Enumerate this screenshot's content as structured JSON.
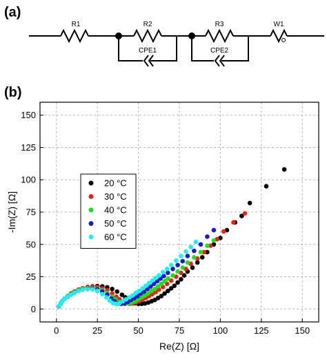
{
  "panel_a": {
    "label": "(a)",
    "components": {
      "R1": "R1",
      "R2": "R2",
      "R3": "R3",
      "W1": "W1",
      "CPE1": "CPE1",
      "CPE2": "CPE2"
    }
  },
  "panel_b": {
    "label": "(b)"
  },
  "chart_data": {
    "type": "scatter",
    "title": "",
    "xlabel": "Re(Z) [Ω]",
    "ylabel": "-Im(Z) [Ω]",
    "xlim": [
      -10,
      160
    ],
    "ylim": [
      -10,
      160
    ],
    "xticks": [
      0,
      25,
      50,
      75,
      100,
      125,
      150
    ],
    "yticks": [
      0,
      25,
      50,
      75,
      100,
      125,
      150
    ],
    "grid": true,
    "legend_position": "middle-left",
    "series": [
      {
        "name": "20 °C",
        "color": "#000000",
        "x": [
          1.5,
          2.5,
          3.5,
          5,
          7,
          9,
          11,
          13.5,
          16,
          19,
          22,
          25,
          28,
          31,
          34,
          37,
          40,
          42,
          44,
          46,
          48,
          50,
          52,
          54,
          56,
          58,
          60,
          62,
          64,
          66,
          68,
          70,
          72,
          74,
          76,
          78,
          80,
          83,
          86,
          89,
          92,
          96,
          100,
          104,
          109,
          113,
          118,
          128,
          139
        ],
        "y": [
          2,
          4,
          6,
          8,
          10,
          12,
          13.5,
          15,
          16,
          17,
          17.5,
          17.8,
          17.5,
          16.8,
          15.5,
          13.5,
          11,
          9,
          7,
          5.5,
          4.5,
          4,
          4,
          4.3,
          5,
          6,
          7,
          8.5,
          10,
          12,
          14,
          16,
          18,
          20.5,
          23,
          26,
          29,
          32,
          36,
          40,
          44,
          50,
          55,
          61,
          67,
          72,
          82,
          95,
          108
        ]
      },
      {
        "name": "30 °C",
        "color": "#e8231a",
        "x": [
          1.5,
          2.5,
          3.5,
          5,
          7,
          9,
          11,
          13.5,
          16,
          19,
          22,
          25,
          28,
          31,
          34,
          36.5,
          38.5,
          40.5,
          42.5,
          44.5,
          46.5,
          48.5,
          50.5,
          52.5,
          54.5,
          56.5,
          58.5,
          60.5,
          62.5,
          65,
          67.5,
          70,
          73,
          76,
          79,
          82,
          86,
          90,
          94,
          98,
          102,
          108,
          115
        ],
        "y": [
          2,
          4,
          6,
          8,
          10,
          12,
          13.5,
          15,
          16,
          16.8,
          17.2,
          17,
          16,
          14.5,
          12,
          9.5,
          7.5,
          5.5,
          4.5,
          4,
          4.3,
          5,
          6,
          7.3,
          8.5,
          10,
          11.5,
          13,
          15,
          17,
          19.5,
          22,
          25,
          28,
          31,
          35,
          39,
          44,
          49,
          54,
          60,
          67,
          74
        ]
      },
      {
        "name": "40 °C",
        "color": "#22dd22",
        "x": [
          1.5,
          2.5,
          3.5,
          5,
          7,
          9,
          11,
          13.5,
          16,
          19,
          22,
          25,
          28,
          31,
          34,
          36,
          38,
          40,
          42,
          44,
          46,
          48,
          50,
          52,
          54,
          56,
          58,
          60,
          62,
          64,
          66,
          68,
          71,
          74,
          77,
          80,
          84,
          88,
          92,
          96
        ],
        "y": [
          2,
          4,
          6,
          8,
          10,
          11.5,
          13,
          14.5,
          15.5,
          16,
          16.2,
          15.8,
          14.5,
          12.5,
          9.5,
          7.5,
          5.5,
          4.3,
          4,
          4.3,
          5,
          6,
          7.5,
          9,
          10.5,
          12,
          14,
          15.5,
          17.5,
          19.5,
          21.5,
          23.5,
          26,
          29,
          32,
          36,
          40,
          44,
          49,
          53
        ]
      },
      {
        "name": "50 °C",
        "color": "#1a1acc",
        "x": [
          1.5,
          2.5,
          3.5,
          5,
          7,
          9,
          11,
          13.5,
          16,
          19,
          22,
          25,
          28,
          31,
          33.5,
          35.5,
          37.5,
          39.5,
          41.5,
          43.5,
          45.5,
          47.5,
          49.5,
          51.5,
          53.5,
          55.5,
          57.5,
          59.5,
          61.5,
          63.5,
          65.5,
          68,
          71,
          74,
          77,
          80,
          84,
          88,
          92,
          96
        ],
        "y": [
          2,
          4,
          6,
          8,
          9.5,
          11,
          12.5,
          14,
          15,
          15.5,
          15.8,
          15.2,
          13.5,
          11,
          8,
          6,
          4.3,
          4,
          4.3,
          5.5,
          7,
          8.5,
          10,
          12,
          13.5,
          15.5,
          17.5,
          19.5,
          21.5,
          23.5,
          25.5,
          28,
          31,
          34,
          37,
          41,
          45,
          50,
          56,
          61
        ]
      },
      {
        "name": "60 °C",
        "color": "#22eeee",
        "x": [
          1.5,
          2.5,
          3.5,
          5,
          7,
          9,
          11,
          13.5,
          16,
          19,
          22,
          25,
          28,
          30.5,
          32.5,
          34.5,
          36.5,
          38.5,
          40.5,
          42.5,
          44.5,
          46.5,
          48.5,
          50.5,
          52.5,
          54.5,
          56.5,
          58.5,
          60.5,
          62.5,
          65,
          67.5,
          70,
          73,
          76,
          79,
          82,
          85
        ],
        "y": [
          2,
          4,
          6,
          8,
          9.5,
          11,
          12.5,
          14,
          15,
          15.3,
          15.2,
          14,
          11.5,
          9,
          6.5,
          4.5,
          4,
          4.5,
          6,
          7.5,
          9,
          10.5,
          12.5,
          14,
          16,
          18,
          20,
          22,
          24,
          26,
          28.5,
          31,
          34,
          37.5,
          41,
          44.5,
          48,
          52
        ]
      }
    ]
  }
}
